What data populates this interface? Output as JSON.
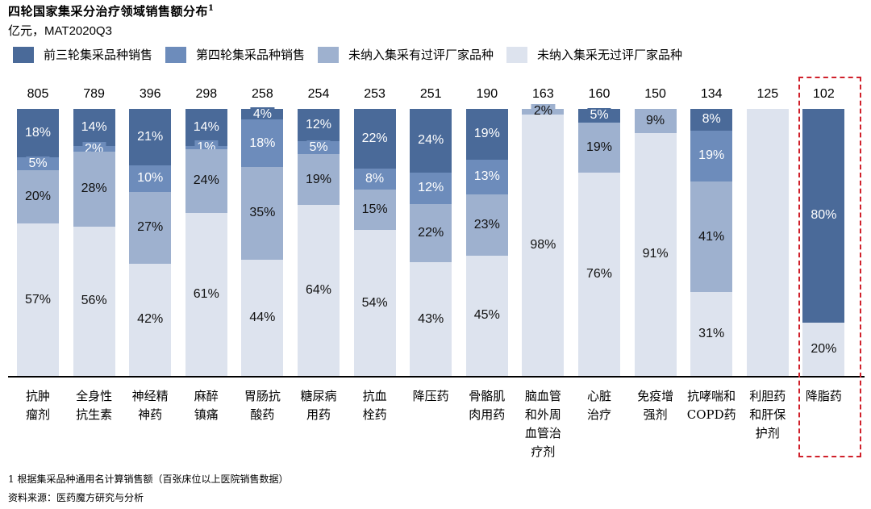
{
  "header": {
    "title": "四轮国家集采分治疗领域销售额分布",
    "title_sup": "1",
    "subtitle_unit": "亿元，",
    "subtitle_period": "MAT2020Q3"
  },
  "colors": {
    "s1": "#4a6a99",
    "s2": "#6d8cbb",
    "s3": "#9eb1cf",
    "s4": "#dde3ee",
    "highlight": "#d0212b"
  },
  "legend": [
    {
      "label": "前三轮集采品种销售",
      "color": "#4a6a99"
    },
    {
      "label": "第四轮集采品种销售",
      "color": "#6d8cbb"
    },
    {
      "label": "未纳入集采有过评厂家品种",
      "color": "#9eb1cf"
    },
    {
      "label": "未纳入集采无过评厂家品种",
      "color": "#dde3ee"
    }
  ],
  "footnote": "1 根据集采品种通用名计算销售额（百张床位以上医院销售数据）",
  "source": "资料来源：医药魔方研究与分析",
  "chart_data": {
    "type": "bar",
    "stacked": true,
    "normalized": true,
    "title": "四轮国家集采分治疗领域销售额分布",
    "subtitle": "亿元，MAT2020Q3",
    "xlabel": "",
    "ylabel": "",
    "legend_position": "top",
    "grid": false,
    "categories": [
      "抗肿瘤剂",
      "全身性抗生素",
      "神经精神药",
      "麻醉镇痛",
      "胃肠抗酸药",
      "糖尿病用药",
      "抗血栓药",
      "降压药",
      "骨骼肌肉用药",
      "脑血管和外周血管治疗剂",
      "心脏治疗",
      "免疫增强剂",
      "抗哮喘和COPD药",
      "利胆药和肝保护剂",
      "降脂药"
    ],
    "category_labels": [
      "抗肿\n瘤剂",
      "全身性\n抗生素",
      "神经精\n神药",
      "麻醉\n镇痛",
      "胃肠抗\n酸药",
      "糖尿病\n用药",
      "抗血\n栓药",
      "降压药",
      "骨骼肌\n肉用药",
      "脑血管\n和外周\n血管治\n疗剂",
      "心脏\n治疗",
      "免疫增\n强剂",
      "抗哮喘和\nCOPD药",
      "利胆药\n和肝保\n护剂",
      "降脂药"
    ],
    "totals": [
      805,
      789,
      396,
      298,
      258,
      254,
      253,
      251,
      190,
      163,
      160,
      150,
      134,
      125,
      102
    ],
    "total_labels": [
      "805",
      "789",
      "396",
      "298",
      "258",
      "254",
      "253",
      "251",
      "190",
      "163",
      "160",
      "150",
      "134",
      "125",
      "102"
    ],
    "series": [
      {
        "name": "前三轮集采品种销售",
        "values": [
          18,
          14,
          21,
          14,
          4,
          12,
          22,
          24,
          19,
          0,
          5,
          0,
          8,
          0,
          80
        ],
        "labels": [
          "18%",
          "14%",
          "21%",
          "14%",
          "4%",
          "12%",
          "22%",
          "24%",
          "19%",
          "",
          "5%",
          "",
          "8%",
          "",
          "80%"
        ]
      },
      {
        "name": "第四轮集采品种销售",
        "values": [
          5,
          2,
          10,
          1,
          18,
          5,
          8,
          12,
          13,
          0,
          0,
          0,
          19,
          0,
          0
        ],
        "labels": [
          "5%",
          "2%",
          "10%",
          "1%",
          "18%",
          "5%",
          "8%",
          "12%",
          "13%",
          "",
          "",
          "",
          "19%",
          "",
          ""
        ]
      },
      {
        "name": "未纳入集采有过评厂家品种",
        "values": [
          20,
          28,
          27,
          24,
          35,
          19,
          15,
          22,
          23,
          2,
          19,
          9,
          41,
          0,
          0
        ],
        "labels": [
          "20%",
          "28%",
          "27%",
          "24%",
          "35%",
          "19%",
          "15%",
          "22%",
          "23%",
          "2%",
          "19%",
          "9%",
          "41%",
          "",
          ""
        ]
      },
      {
        "name": "未纳入集采无过评厂家品种",
        "values": [
          57,
          56,
          42,
          61,
          44,
          64,
          54,
          43,
          45,
          98,
          76,
          91,
          31,
          100,
          20
        ],
        "labels": [
          "57%",
          "56%",
          "42%",
          "61%",
          "44%",
          "64%",
          "54%",
          "43%",
          "45%",
          "98%",
          "76%",
          "91%",
          "31%",
          "",
          "20%"
        ]
      }
    ],
    "highlighted_category": "降脂药",
    "ylim": [
      0,
      100
    ]
  }
}
